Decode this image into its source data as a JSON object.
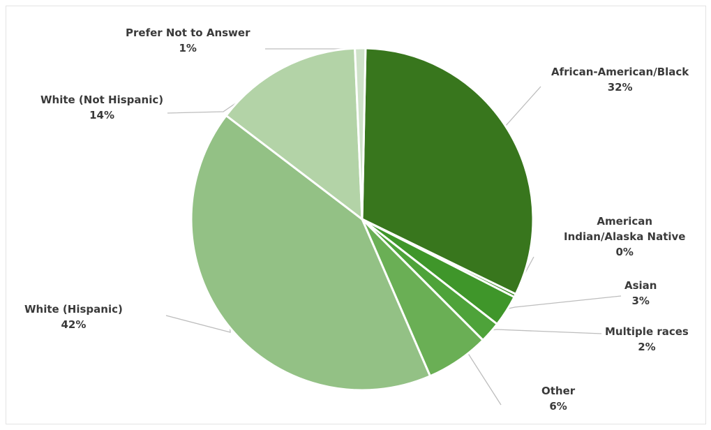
{
  "chart_data": {
    "type": "pie",
    "title": "",
    "legend": "none",
    "slices": [
      {
        "label": "African-American/Black",
        "value": 32,
        "pct_label": "32%",
        "color": "#38761d"
      },
      {
        "label": "American\nIndian/Alaska Native",
        "value": 0.3,
        "pct_label": "0%",
        "color": "#3d8a26"
      },
      {
        "label": "Asian",
        "value": 3,
        "pct_label": "3%",
        "color": "#3f962a"
      },
      {
        "label": "Multiple races",
        "value": 2,
        "pct_label": "2%",
        "color": "#4ea33a"
      },
      {
        "label": "Other",
        "value": 6,
        "pct_label": "6%",
        "color": "#6aaf55"
      },
      {
        "label": "White (Hispanic)",
        "value": 42,
        "pct_label": "42%",
        "color": "#93c185"
      },
      {
        "label": "White (Not Hispanic)",
        "value": 14,
        "pct_label": "14%",
        "color": "#b3d3a7"
      },
      {
        "label": "Prefer Not to Answer",
        "value": 1,
        "pct_label": "1%",
        "color": "#cfe2c9"
      }
    ]
  }
}
